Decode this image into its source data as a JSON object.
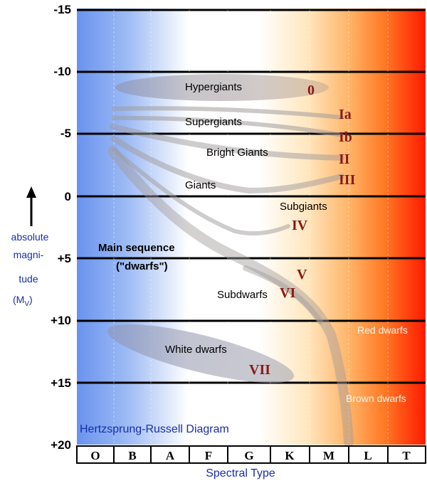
{
  "colors": {
    "background_gradient": [
      "#6a93ee",
      "#9bb9f4",
      "#ffffff",
      "#ffffff",
      "#ffe7c0",
      "#ffb468",
      "#ff7a26",
      "#ff1a00"
    ],
    "lum_class": "#8b1a14",
    "label_blue": "#1a2ea8",
    "band": "#a09a9a"
  },
  "y_axis": {
    "ticks": [
      "-15",
      "-10",
      "-5",
      "0",
      "+5",
      "+10",
      "+15",
      "+20"
    ],
    "label_lines": [
      "absolute",
      "magni-",
      "tude",
      "(M"
    ],
    "label_subscript": "V",
    "label_close": ")",
    "arrow": "up-arrow-icon"
  },
  "x_axis": {
    "classes": [
      "O",
      "B",
      "A",
      "F",
      "G",
      "K",
      "M",
      "L",
      "T"
    ],
    "label": "Spectral Type"
  },
  "regions": {
    "hypergiants": "Hypergiants",
    "supergiants": "Supergiants",
    "bright_giants": "Bright Giants",
    "giants": "Giants",
    "subgiants": "Subgiants",
    "main_sequence": "Main sequence",
    "dwarfs": "(\"dwarfs\")",
    "subdwarfs": "Subdwarfs",
    "white_dwarfs": "White dwarfs",
    "red_dwarfs": "Red dwarfs",
    "brown_dwarfs": "Brown dwarfs"
  },
  "luminosity_classes": {
    "c0": "0",
    "ia": "Ia",
    "ib": "Ib",
    "ii": "II",
    "iii": "III",
    "iv": "IV",
    "v": "V",
    "vi": "VI",
    "vii": "VII"
  },
  "title": "Hertzsprung-Russell Diagram"
}
